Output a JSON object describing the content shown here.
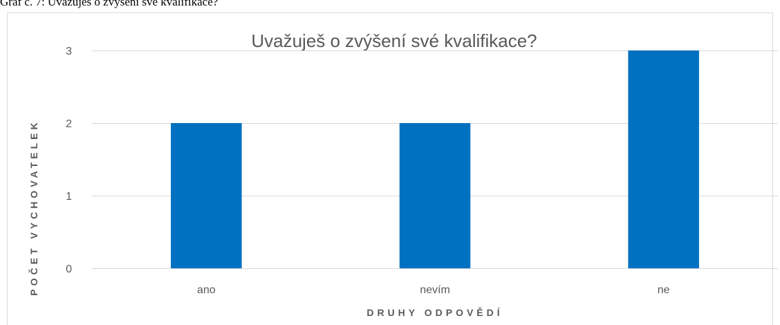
{
  "caption": "Graf č. 7: Uvažuješ o zvýšení své kvalifikace?",
  "chart_data": {
    "type": "bar",
    "title": "Uvažuješ o zvýšení své kvalifikace?",
    "x_label": "DRUHY ODPOVĚDÍ",
    "y_label": "POČET VYCHOVATELEK",
    "categories": [
      "ano",
      "nevím",
      "ne"
    ],
    "values": [
      2,
      2,
      3
    ],
    "color": "#0070c0",
    "ylim": [
      0,
      3
    ],
    "yticks": [
      0,
      1,
      2,
      3
    ],
    "grid": true
  }
}
